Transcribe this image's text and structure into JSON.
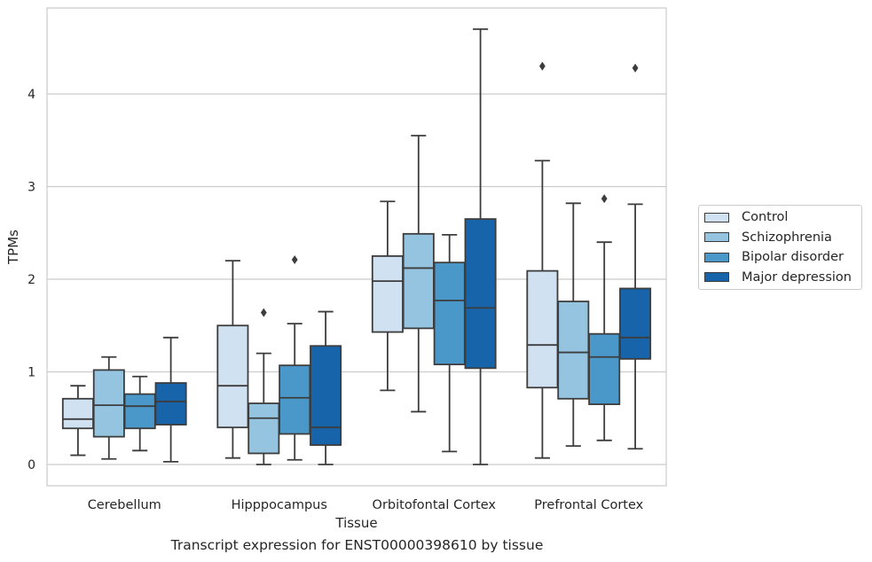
{
  "caption": "Transcript expression for ENST00000398610 by tissue",
  "chart_data": {
    "type": "box",
    "xlabel": "Tissue",
    "ylabel": "TPMs",
    "ylim": [
      -0.22,
      4.95
    ],
    "yticks": [
      0,
      1,
      2,
      3,
      4
    ],
    "ytick_labels": [
      "0",
      "1",
      "2",
      "3",
      "4"
    ],
    "grid": "horizontal",
    "legend_position": "right",
    "categories": [
      "Cerebellum",
      "Hipppocampus",
      "Orbitofontal Cortex",
      "Prefrontal Cortex"
    ],
    "series": [
      {
        "name": "Control",
        "color": "#d0e1f2",
        "boxes": [
          {
            "min": 0.1,
            "q1": 0.39,
            "median": 0.49,
            "q3": 0.71,
            "max": 0.85,
            "outliers": []
          },
          {
            "min": 0.07,
            "q1": 0.4,
            "median": 0.85,
            "q3": 1.5,
            "max": 2.2,
            "outliers": []
          },
          {
            "min": 0.8,
            "q1": 1.43,
            "median": 1.98,
            "q3": 2.25,
            "max": 2.84,
            "outliers": []
          },
          {
            "min": 0.07,
            "q1": 0.83,
            "median": 1.29,
            "q3": 2.09,
            "max": 3.28,
            "outliers": [
              4.3
            ]
          }
        ]
      },
      {
        "name": "Schizophrenia",
        "color": "#94c4df",
        "boxes": [
          {
            "min": 0.06,
            "q1": 0.3,
            "median": 0.64,
            "q3": 1.02,
            "max": 1.16,
            "outliers": []
          },
          {
            "min": 0.0,
            "q1": 0.12,
            "median": 0.5,
            "q3": 0.66,
            "max": 1.2,
            "outliers": [
              1.64
            ]
          },
          {
            "min": 0.57,
            "q1": 1.47,
            "median": 2.12,
            "q3": 2.49,
            "max": 3.55,
            "outliers": []
          },
          {
            "min": 0.2,
            "q1": 0.71,
            "median": 1.21,
            "q3": 1.76,
            "max": 2.82,
            "outliers": []
          }
        ]
      },
      {
        "name": "Bipolar disorder",
        "color": "#4a98c9",
        "boxes": [
          {
            "min": 0.15,
            "q1": 0.39,
            "median": 0.63,
            "q3": 0.76,
            "max": 0.95,
            "outliers": []
          },
          {
            "min": 0.05,
            "q1": 0.33,
            "median": 0.72,
            "q3": 1.07,
            "max": 1.52,
            "outliers": [
              2.21
            ]
          },
          {
            "min": 0.14,
            "q1": 1.08,
            "median": 1.77,
            "q3": 2.18,
            "max": 2.48,
            "outliers": []
          },
          {
            "min": 0.26,
            "q1": 0.65,
            "median": 1.16,
            "q3": 1.41,
            "max": 2.4,
            "outliers": [
              2.87
            ]
          }
        ]
      },
      {
        "name": "Major depression",
        "color": "#1764ab",
        "boxes": [
          {
            "min": 0.03,
            "q1": 0.43,
            "median": 0.68,
            "q3": 0.88,
            "max": 1.37,
            "outliers": []
          },
          {
            "min": 0.0,
            "q1": 0.21,
            "median": 0.4,
            "q3": 1.28,
            "max": 1.65,
            "outliers": []
          },
          {
            "min": 0.0,
            "q1": 1.04,
            "median": 1.69,
            "q3": 2.65,
            "max": 4.7,
            "outliers": []
          },
          {
            "min": 0.17,
            "q1": 1.14,
            "median": 1.37,
            "q3": 1.9,
            "max": 2.81,
            "outliers": [
              4.28
            ]
          }
        ]
      }
    ]
  }
}
